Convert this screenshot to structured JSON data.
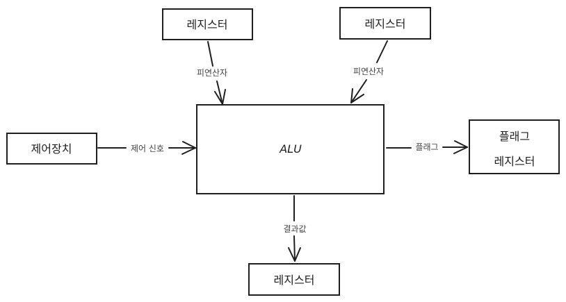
{
  "nodes": {
    "register_top_left": "레지스터",
    "register_top_right": "레지스터",
    "control_unit": "제어장치",
    "alu": "ALU",
    "flag_register_line1": "플래그",
    "flag_register_line2": "레지스터",
    "register_bottom": "레지스터"
  },
  "edges": {
    "operand_left": "피연산자",
    "operand_right": "피연산자",
    "control_signal": "제어 신호",
    "flag": "플래그",
    "result": "결과값"
  }
}
